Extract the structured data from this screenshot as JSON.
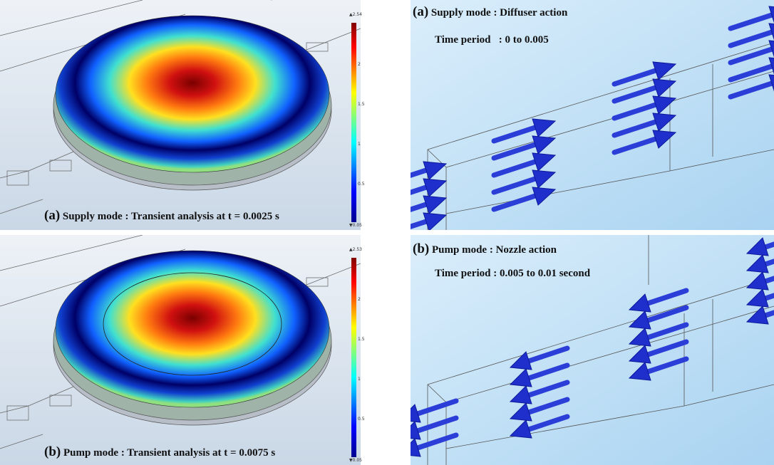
{
  "contour_panels": [
    {
      "label": "(a)",
      "caption": "Supply mode : Transient analysis at t = 0.0025 s",
      "colorbar": {
        "max": "▲2.54",
        "ticks": [
          "2",
          "1.5",
          "1",
          "0.5"
        ],
        "min": "▼0.05"
      }
    },
    {
      "label": "(b)",
      "caption": "Pump mode : Transient analysis at t = 0.0075 s",
      "colorbar": {
        "max": "▲2.53",
        "ticks": [
          "2",
          "1.5",
          "1",
          "0.5"
        ],
        "min": "▼0.05"
      }
    }
  ],
  "arrow_panels": [
    {
      "label": "(a)",
      "title": "Supply mode : Diffuser action",
      "period": "Time period   : 0 to 0.005"
    },
    {
      "label": "(b)",
      "title": "Pump mode : Nozzle action",
      "period": "Time period : 0.005 to 0.01 second"
    }
  ]
}
